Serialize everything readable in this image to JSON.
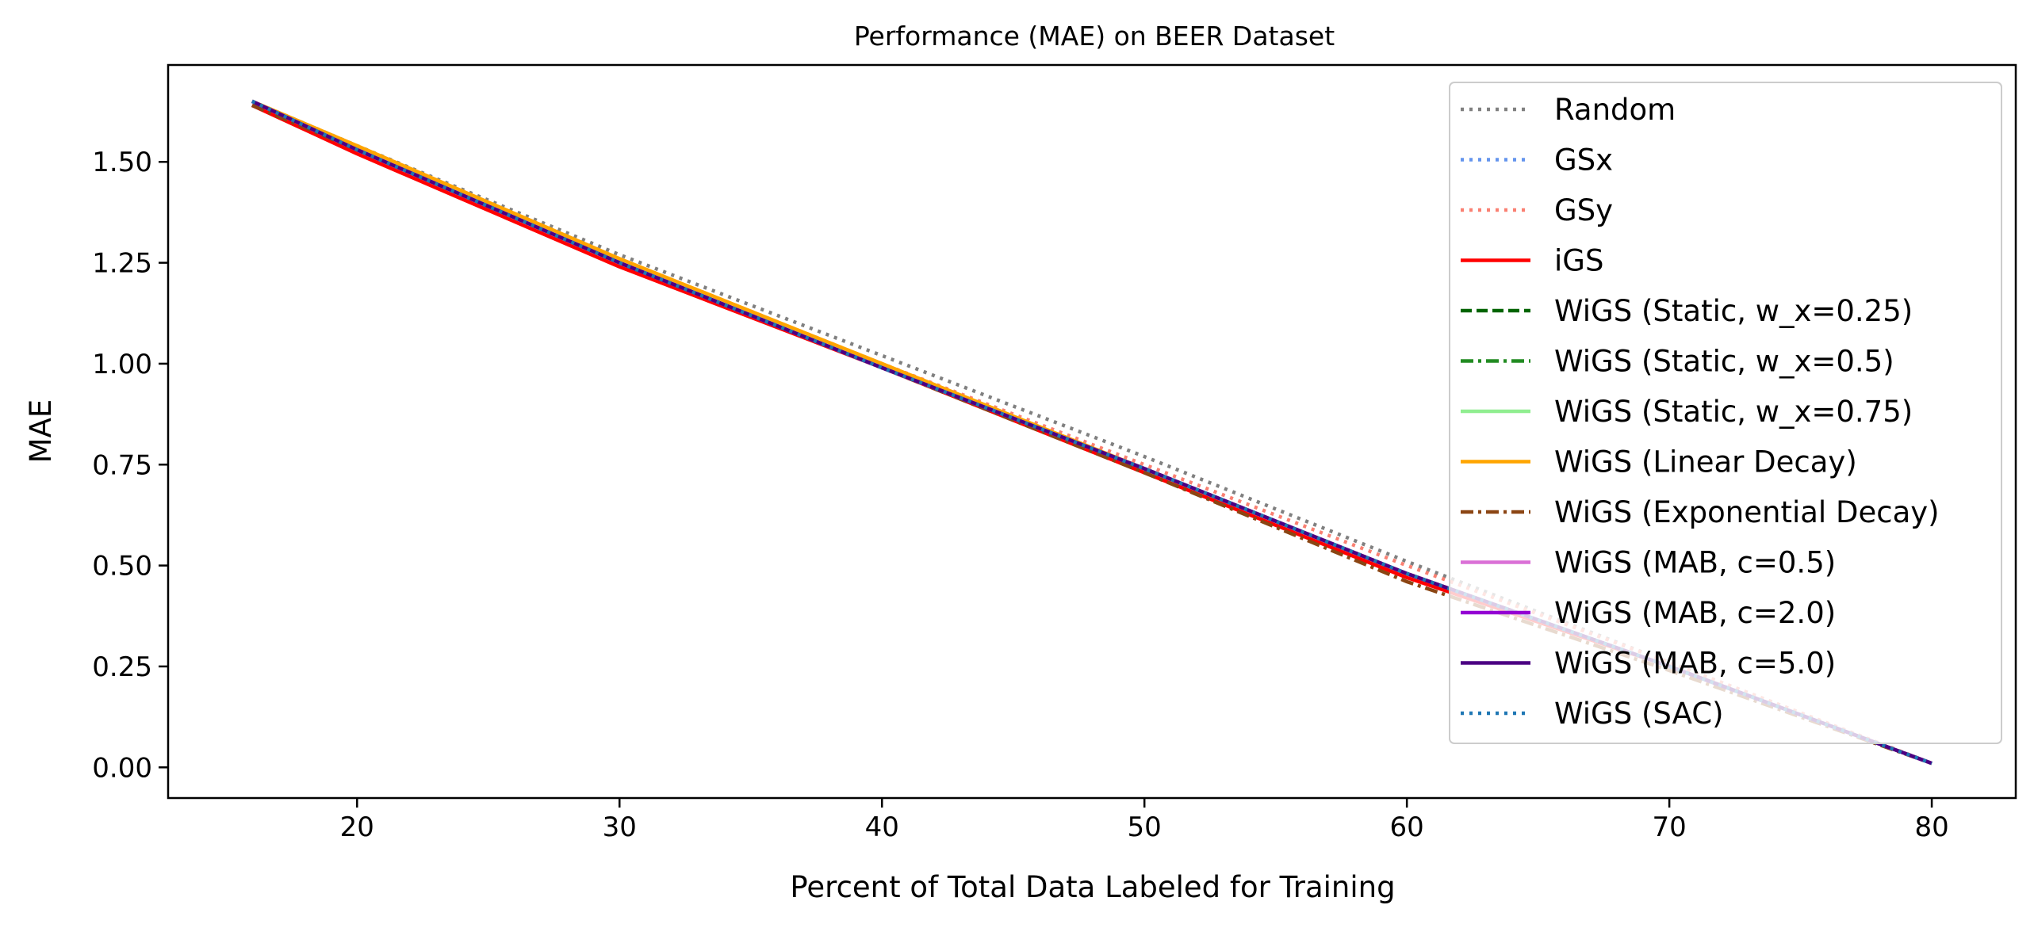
{
  "chart_data": {
    "type": "line",
    "title": "Performance (MAE) on BEER Dataset",
    "xlabel": "Percent of Total Data Labeled for Training",
    "ylabel": "MAE",
    "xlim": [
      12.8,
      83.2
    ],
    "ylim": [
      -0.076,
      1.74
    ],
    "xticks": [
      20,
      30,
      40,
      50,
      60,
      70,
      80
    ],
    "xtick_labels": [
      "20",
      "30",
      "40",
      "50",
      "60",
      "70",
      "80"
    ],
    "yticks": [
      0.0,
      0.25,
      0.5,
      0.75,
      1.0,
      1.25,
      1.5
    ],
    "ytick_labels": [
      "0.00",
      "0.25",
      "0.50",
      "0.75",
      "1.00",
      "1.25",
      "1.50"
    ],
    "grid": false,
    "legend_position": "top-right",
    "series": [
      {
        "name": "Random",
        "color": "#808080",
        "style": "dotted",
        "x": [
          16,
          20,
          30,
          40,
          50,
          60,
          70,
          80
        ],
        "y": [
          1.65,
          1.54,
          1.27,
          1.02,
          0.77,
          0.51,
          0.26,
          0.01
        ]
      },
      {
        "name": "GSx",
        "color": "#6495ed",
        "style": "dotted",
        "x": [
          16,
          20,
          30,
          40,
          50,
          60,
          70,
          80
        ],
        "y": [
          1.64,
          1.53,
          1.25,
          0.99,
          0.74,
          0.48,
          0.25,
          0.01
        ]
      },
      {
        "name": "GSy",
        "color": "#fa8072",
        "style": "dotted",
        "x": [
          16,
          20,
          30,
          40,
          50,
          60,
          70,
          80
        ],
        "y": [
          1.65,
          1.53,
          1.26,
          1.0,
          0.75,
          0.5,
          0.26,
          0.01
        ]
      },
      {
        "name": "iGS",
        "color": "#ff0000",
        "style": "solid",
        "x": [
          16,
          20,
          30,
          40,
          50,
          60,
          70,
          80
        ],
        "y": [
          1.64,
          1.52,
          1.24,
          0.99,
          0.73,
          0.47,
          0.25,
          0.01
        ]
      },
      {
        "name": "WiGS (Static, w_x=0.25)",
        "color": "#006400",
        "style": "dashed",
        "x": [
          16,
          20,
          30,
          40,
          50,
          60,
          70,
          80
        ],
        "y": [
          1.65,
          1.53,
          1.25,
          0.99,
          0.74,
          0.48,
          0.25,
          0.01
        ]
      },
      {
        "name": "WiGS (Static, w_x=0.5)",
        "color": "#228b22",
        "style": "dashdot",
        "x": [
          16,
          20,
          30,
          40,
          50,
          60,
          70,
          80
        ],
        "y": [
          1.65,
          1.53,
          1.25,
          0.99,
          0.74,
          0.48,
          0.25,
          0.01
        ]
      },
      {
        "name": "WiGS (Static, w_x=0.75)",
        "color": "#90ee90",
        "style": "solid",
        "x": [
          16,
          20,
          30,
          40,
          50,
          60,
          70,
          80
        ],
        "y": [
          1.65,
          1.53,
          1.25,
          0.99,
          0.74,
          0.48,
          0.25,
          0.01
        ]
      },
      {
        "name": "WiGS (Linear Decay)",
        "color": "#ffa500",
        "style": "solid",
        "x": [
          16,
          20,
          30,
          40,
          50,
          60,
          70,
          80
        ],
        "y": [
          1.65,
          1.54,
          1.26,
          1.0,
          0.74,
          0.48,
          0.25,
          0.01
        ]
      },
      {
        "name": "WiGS (Exponential Decay)",
        "color": "#8b4513",
        "style": "dashdot",
        "x": [
          16,
          20,
          30,
          40,
          50,
          60,
          70,
          80
        ],
        "y": [
          1.64,
          1.53,
          1.25,
          0.99,
          0.73,
          0.46,
          0.24,
          0.01
        ]
      },
      {
        "name": "WiGS (MAB, c=0.5)",
        "color": "#da70d6",
        "style": "solid",
        "x": [
          16,
          20,
          30,
          40,
          50,
          60,
          70,
          80
        ],
        "y": [
          1.65,
          1.53,
          1.25,
          0.99,
          0.74,
          0.48,
          0.25,
          0.01
        ]
      },
      {
        "name": "WiGS (MAB, c=2.0)",
        "color": "#9400d3",
        "style": "solid",
        "x": [
          16,
          20,
          30,
          40,
          50,
          60,
          70,
          80
        ],
        "y": [
          1.65,
          1.53,
          1.25,
          0.99,
          0.74,
          0.48,
          0.25,
          0.01
        ]
      },
      {
        "name": "WiGS (MAB, c=5.0)",
        "color": "#4b0082",
        "style": "solid",
        "x": [
          16,
          20,
          30,
          40,
          50,
          60,
          70,
          80
        ],
        "y": [
          1.65,
          1.53,
          1.25,
          0.99,
          0.74,
          0.48,
          0.25,
          0.01
        ]
      },
      {
        "name": "WiGS (SAC)",
        "color": "#1f77b4",
        "style": "dotted",
        "x": [
          16,
          20,
          30,
          40,
          50,
          60,
          70,
          80
        ],
        "y": [
          1.65,
          1.53,
          1.25,
          0.99,
          0.74,
          0.48,
          0.25,
          0.01
        ]
      }
    ]
  }
}
